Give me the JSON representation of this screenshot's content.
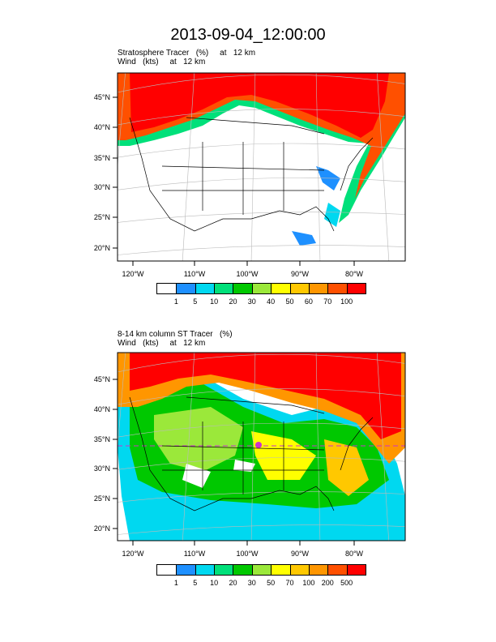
{
  "title": "2013-09-04_12:00:00",
  "panels": [
    {
      "title_line1": "Stratosphere Tracer   (%)     at   12 km",
      "title_line2": "Wind   (kts)     at   12 km",
      "lon_labels": [
        "120°W",
        "110°W",
        "100°W",
        "90°W",
        "80°W"
      ],
      "lat_labels": [
        "45°N",
        "40°N",
        "35°N",
        "30°N",
        "25°N",
        "20°N"
      ],
      "colorbar_labels": [
        "1",
        "5",
        "10",
        "20",
        "30",
        "40",
        "50",
        "60",
        "70",
        "100"
      ]
    },
    {
      "title_line1": "8-14 km column ST Tracer   (%)",
      "title_line2": "Wind   (kts)     at   12 km",
      "lon_labels": [
        "120°W",
        "110°W",
        "100°W",
        "90°W",
        "80°W"
      ],
      "lat_labels": [
        "45°N",
        "40°N",
        "35°N",
        "30°N",
        "25°N",
        "20°N"
      ],
      "colorbar_labels": [
        "1",
        "5",
        "10",
        "20",
        "30",
        "50",
        "70",
        "100",
        "200",
        "500"
      ]
    }
  ],
  "colors": {
    "scale": [
      "#ffffff",
      "#1e90ff",
      "#00d8f0",
      "#00e07a",
      "#00c800",
      "#9be83a",
      "#ffff00",
      "#ffc800",
      "#ff9600",
      "#ff5000",
      "#ff0000"
    ],
    "grid": "#bbbbbb",
    "frame": "#000000",
    "marker": "#cc33cc"
  }
}
